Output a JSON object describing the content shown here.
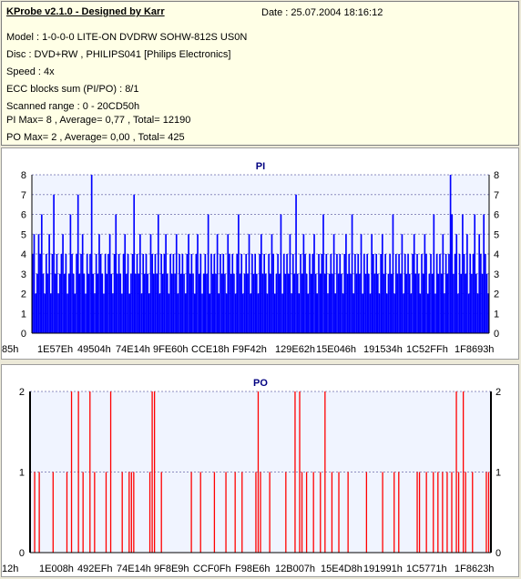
{
  "header": {
    "app_title": "KProbe v2.1.0 - Designed by Karr",
    "date": "Date : 25.07.2004 18:16:12",
    "model": "Model : 1-0-0-0 LITE-ON DVDRW SOHW-812S  US0N",
    "disc": "Disc : DVD+RW , PHILIPS041 [Philips Electronics]",
    "speed": "Speed : 4x",
    "ecc": "ECC blocks sum (PI/PO) : 8/1",
    "range": "Scanned range : 0 - 20CD50h",
    "pi_stats": "PI Max= 8 , Average= 0,77 , Total= 12190",
    "po_stats": "PO Max= 2 , Average= 0,00 , Total= 425"
  },
  "colors": {
    "panel_background": "#FFFFE6",
    "window_background": "#ECE9D8",
    "pi_bar": "#0000FF",
    "po_bar": "#FF0000",
    "plot_background": "#F0F4FF",
    "chart_title": "#000080"
  },
  "chart_data": [
    {
      "type": "bar",
      "title": "PI",
      "ylim": [
        0,
        8
      ],
      "yticks": [
        0,
        1,
        2,
        3,
        4,
        5,
        6,
        7,
        8
      ],
      "xticks": [
        "85h",
        "1E57Eh",
        "49504h",
        "74E14h",
        "9FE60h",
        "CCE18h",
        "F9F42h",
        "129E62h",
        "15E046h",
        "191534h",
        "1C52FFh",
        "1F8693h"
      ],
      "grid": true,
      "values": [
        4,
        5,
        2,
        3,
        5,
        4,
        6,
        3,
        2,
        4,
        3,
        5,
        2,
        4,
        7,
        3,
        4,
        2,
        3,
        4,
        5,
        3,
        4,
        2,
        3,
        6,
        4,
        3,
        2,
        4,
        7,
        3,
        4,
        5,
        3,
        2,
        4,
        3,
        4,
        8,
        3,
        2,
        4,
        3,
        5,
        4,
        3,
        2,
        4,
        3,
        4,
        5,
        3,
        2,
        4,
        6,
        3,
        4,
        3,
        2,
        4,
        5,
        3,
        4,
        2,
        3,
        4,
        7,
        3,
        4,
        3,
        5,
        2,
        4,
        3,
        4,
        3,
        2,
        5,
        4,
        3,
        4,
        3,
        6,
        2,
        4,
        3,
        4,
        5,
        3,
        2,
        4,
        3,
        4,
        3,
        5,
        2,
        4,
        3,
        4,
        3,
        2,
        4,
        5,
        3,
        4,
        3,
        2,
        4,
        5,
        3,
        4,
        2,
        3,
        4,
        3,
        6,
        2,
        4,
        3,
        4,
        3,
        5,
        2,
        4,
        3,
        4,
        3,
        2,
        5,
        4,
        3,
        4,
        3,
        2,
        4,
        6,
        3,
        4,
        2,
        3,
        4,
        3,
        5,
        2,
        4,
        3,
        4,
        3,
        2,
        4,
        5,
        3,
        4,
        3,
        2,
        4,
        3,
        5,
        4,
        2,
        3,
        4,
        3,
        6,
        2,
        4,
        3,
        4,
        3,
        5,
        2,
        4,
        3,
        7,
        3,
        2,
        4,
        3,
        5,
        4,
        3,
        2,
        4,
        3,
        4,
        5,
        3,
        2,
        4,
        3,
        4,
        6,
        3,
        4,
        2,
        3,
        4,
        3,
        5,
        2,
        4,
        3,
        4,
        3,
        2,
        4,
        5,
        3,
        4,
        3,
        6,
        2,
        4,
        3,
        4,
        3,
        5,
        2,
        4,
        3,
        4,
        3,
        2,
        5,
        4,
        3,
        4,
        3,
        2,
        4,
        5,
        3,
        4,
        2,
        3,
        4,
        3,
        6,
        2,
        4,
        3,
        4,
        3,
        5,
        2,
        4,
        3,
        4,
        3,
        2,
        4,
        5,
        3,
        4,
        3,
        2,
        4,
        3,
        5,
        4,
        2,
        3,
        4,
        3,
        6,
        2,
        4,
        3,
        4,
        3,
        5,
        2,
        4,
        3,
        4,
        8,
        6,
        3,
        4,
        5,
        2,
        4,
        3,
        6,
        4,
        3,
        5,
        2,
        4,
        3,
        4,
        6,
        3,
        2,
        5,
        4,
        3,
        6,
        4,
        3,
        2
      ]
    },
    {
      "type": "bar",
      "title": "PO",
      "ylim": [
        0,
        2
      ],
      "yticks": [
        0,
        1,
        2
      ],
      "xticks": [
        "12h",
        "1E008h",
        "492EFh",
        "74E14h",
        "9F8E9h",
        "CCF0Fh",
        "F98E6h",
        "12B007h",
        "15E4D8h",
        "191991h",
        "1C5771h",
        "1F8623h"
      ],
      "grid": true,
      "spikes": [
        [
          0.01,
          1
        ],
        [
          0.02,
          1
        ],
        [
          0.05,
          1
        ],
        [
          0.08,
          1
        ],
        [
          0.09,
          2
        ],
        [
          0.105,
          2
        ],
        [
          0.115,
          1
        ],
        [
          0.13,
          2
        ],
        [
          0.14,
          1
        ],
        [
          0.165,
          1
        ],
        [
          0.175,
          2
        ],
        [
          0.2,
          1
        ],
        [
          0.215,
          1
        ],
        [
          0.22,
          1
        ],
        [
          0.225,
          1
        ],
        [
          0.26,
          1
        ],
        [
          0.265,
          2
        ],
        [
          0.27,
          2
        ],
        [
          0.285,
          1
        ],
        [
          0.35,
          1
        ],
        [
          0.37,
          1
        ],
        [
          0.4,
          1
        ],
        [
          0.425,
          1
        ],
        [
          0.445,
          1
        ],
        [
          0.46,
          1
        ],
        [
          0.49,
          1
        ],
        [
          0.495,
          2
        ],
        [
          0.5,
          1
        ],
        [
          0.52,
          1
        ],
        [
          0.555,
          1
        ],
        [
          0.575,
          2
        ],
        [
          0.585,
          2
        ],
        [
          0.59,
          1
        ],
        [
          0.6,
          1
        ],
        [
          0.615,
          1
        ],
        [
          0.63,
          1
        ],
        [
          0.64,
          2
        ],
        [
          0.655,
          1
        ],
        [
          0.67,
          1
        ],
        [
          0.69,
          1
        ],
        [
          0.73,
          1
        ],
        [
          0.765,
          1
        ],
        [
          0.79,
          1
        ],
        [
          0.8,
          1
        ],
        [
          0.84,
          1
        ],
        [
          0.845,
          1
        ],
        [
          0.86,
          1
        ],
        [
          0.875,
          1
        ],
        [
          0.885,
          1
        ],
        [
          0.895,
          1
        ],
        [
          0.905,
          1
        ],
        [
          0.915,
          1
        ],
        [
          0.925,
          2
        ],
        [
          0.93,
          1
        ],
        [
          0.94,
          2
        ],
        [
          0.945,
          1
        ],
        [
          0.96,
          1
        ],
        [
          0.99,
          1
        ],
        [
          0.995,
          1
        ]
      ]
    }
  ]
}
